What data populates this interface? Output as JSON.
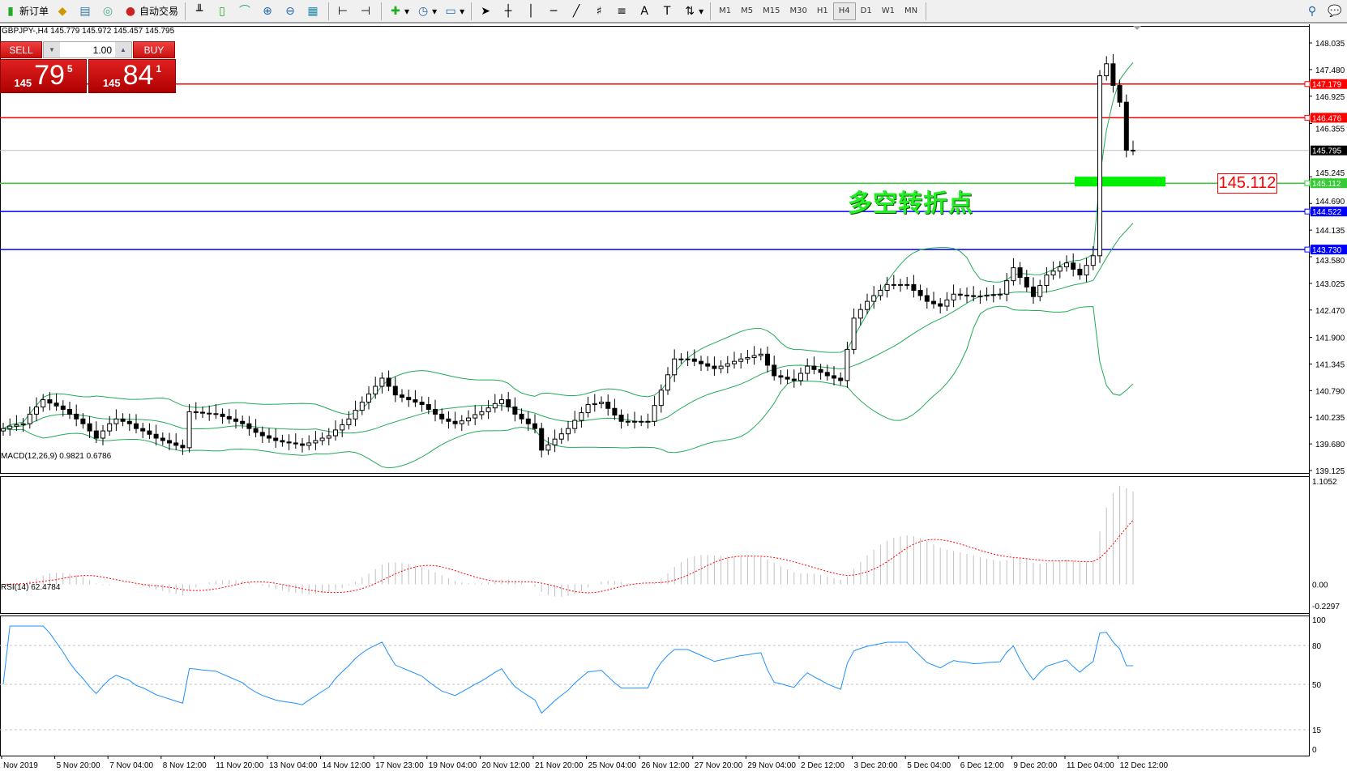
{
  "toolbar": {
    "new_order": "新订单",
    "auto_trade": "自动交易",
    "icons": [
      "new-order-icon",
      "market-watch-icon",
      "navigator-icon",
      "signals-icon",
      "auto-trading-icon",
      "bar-chart-icon",
      "candlestick-icon",
      "line-chart-icon",
      "zoom-in-icon",
      "zoom-out-icon",
      "tile-windows-icon",
      "chart-shift-icon",
      "auto-scroll-icon",
      "indicators-icon",
      "periods-icon",
      "templates-icon",
      "cursor-icon",
      "crosshair-icon",
      "vertical-line-icon",
      "horizontal-line-icon",
      "trendline-icon",
      "equidistant-channel-icon",
      "fibonacci-icon",
      "text-icon",
      "text-label-icon",
      "arrows-icon",
      "search-icon",
      "chat-icon"
    ],
    "timeframes": [
      "M1",
      "M5",
      "M15",
      "M30",
      "H1",
      "H4",
      "D1",
      "W1",
      "MN"
    ],
    "active_timeframe": "H4"
  },
  "header": {
    "symbol_info": "GBPJPY-,H4  145.779 145.972 145.457 145.795"
  },
  "trade_panel": {
    "sell_label": "SELL",
    "buy_label": "BUY",
    "lot": "1.00",
    "sell_small": "145",
    "sell_big": "79",
    "sell_tiny": "5",
    "buy_small": "145",
    "buy_big": "84",
    "buy_tiny": "1"
  },
  "annotation": {
    "text": "多空转折点",
    "level_box": "145.112"
  },
  "colors": {
    "bull": "#ffffff",
    "bear": "#000000",
    "bands": "#22aa55",
    "resistance": "#ff0000",
    "support": "#0000ff",
    "pivot": "#33cc33",
    "macd_hist": "#c0c0c0",
    "macd_signal": "#ff0000",
    "rsi": "#1e90ff"
  },
  "chart_data": {
    "type": "candlestick",
    "symbol": "GBPJPY-",
    "timeframe": "H4",
    "price_ticks": [
      "148.035",
      "147.480",
      "146.925",
      "146.355",
      "145.245",
      "144.690",
      "144.135",
      "143.580",
      "143.025",
      "142.470",
      "141.900",
      "141.345",
      "140.790",
      "140.235",
      "139.680",
      "139.125"
    ],
    "ylim": [
      139.125,
      148.035
    ],
    "current_price": "145.795",
    "levels": [
      {
        "label": "147.179",
        "value": 147.179,
        "color": "#ff0000"
      },
      {
        "label": "146.476",
        "value": 146.476,
        "color": "#ff0000"
      },
      {
        "label": "145.112",
        "value": 145.112,
        "color": "#33cc33"
      },
      {
        "label": "144.522",
        "value": 144.522,
        "color": "#0000ff"
      },
      {
        "label": "143.730",
        "value": 143.73,
        "color": "#0000ff"
      }
    ],
    "closes": [
      140.0,
      140.05,
      140.08,
      140.1,
      140.3,
      140.45,
      140.6,
      140.53,
      140.47,
      140.4,
      140.3,
      140.2,
      140.1,
      139.95,
      139.8,
      139.95,
      140.1,
      140.2,
      140.15,
      140.1,
      140.0,
      139.95,
      139.88,
      139.8,
      139.75,
      139.7,
      139.65,
      139.6,
      140.35,
      140.34,
      140.32,
      140.31,
      140.3,
      140.25,
      140.2,
      140.15,
      140.1,
      140.0,
      139.92,
      139.85,
      139.8,
      139.75,
      139.72,
      139.7,
      139.68,
      139.65,
      139.7,
      139.75,
      139.8,
      139.85,
      139.97,
      140.08,
      140.2,
      140.38,
      140.55,
      140.72,
      140.88,
      141.05,
      140.88,
      140.7,
      140.65,
      140.6,
      140.55,
      140.5,
      140.4,
      140.3,
      140.2,
      140.15,
      140.1,
      140.16,
      140.22,
      140.29,
      140.35,
      140.43,
      140.52,
      140.6,
      140.45,
      140.3,
      140.2,
      140.1,
      140.0,
      139.55,
      139.66,
      139.78,
      139.89,
      140.0,
      140.17,
      140.33,
      140.5,
      140.52,
      140.55,
      140.42,
      140.28,
      140.15,
      140.15,
      140.15,
      140.15,
      140.15,
      140.48,
      140.8,
      141.12,
      141.45,
      141.45,
      141.45,
      141.4,
      141.35,
      141.3,
      141.25,
      141.3,
      141.35,
      141.4,
      141.45,
      141.48,
      141.52,
      141.55,
      141.32,
      141.1,
      141.07,
      141.03,
      141.0,
      141.15,
      141.3,
      141.23,
      141.17,
      141.1,
      141.05,
      141.0,
      141.65,
      142.3,
      142.48,
      142.65,
      142.77,
      142.88,
      143.0,
      143.0,
      143.0,
      143.0,
      142.88,
      142.77,
      142.65,
      142.6,
      142.55,
      142.68,
      142.8,
      142.78,
      142.77,
      142.75,
      142.76,
      142.78,
      142.79,
      142.8,
      143.08,
      143.35,
      143.15,
      142.95,
      142.75,
      142.98,
      143.2,
      143.28,
      143.37,
      143.45,
      143.32,
      143.2,
      143.4,
      143.6,
      147.35,
      147.6,
      147.15,
      146.8,
      145.8,
      145.795
    ],
    "bollinger": {
      "period": 20,
      "deviation": 2
    },
    "macd": {
      "label": "MACD(12,26,9) 0.9821 0.6786",
      "ticks": [
        "1.1052",
        "0.00",
        "-0.2297"
      ],
      "ylim": [
        -0.2297,
        1.1052
      ]
    },
    "rsi": {
      "label": "RSI(14) 62.4784",
      "ticks": [
        "100",
        "80",
        "50",
        "15",
        "0"
      ],
      "levels": [
        80,
        50,
        15
      ],
      "ylim": [
        0,
        100
      ]
    },
    "time_labels": [
      "Nov 2019",
      "5 Nov 20:00",
      "7 Nov 04:00",
      "8 Nov 12:00",
      "11 Nov 20:00",
      "13 Nov 04:00",
      "14 Nov 12:00",
      "17 Nov 23:00",
      "19 Nov 04:00",
      "20 Nov 12:00",
      "21 Nov 20:00",
      "25 Nov 04:00",
      "26 Nov 12:00",
      "27 Nov 20:00",
      "29 Nov 04:00",
      "2 Dec 12:00",
      "3 Dec 20:00",
      "5 Dec 04:00",
      "6 Dec 12:00",
      "9 Dec 20:00",
      "11 Dec 04:00",
      "12 Dec 12:00"
    ]
  }
}
